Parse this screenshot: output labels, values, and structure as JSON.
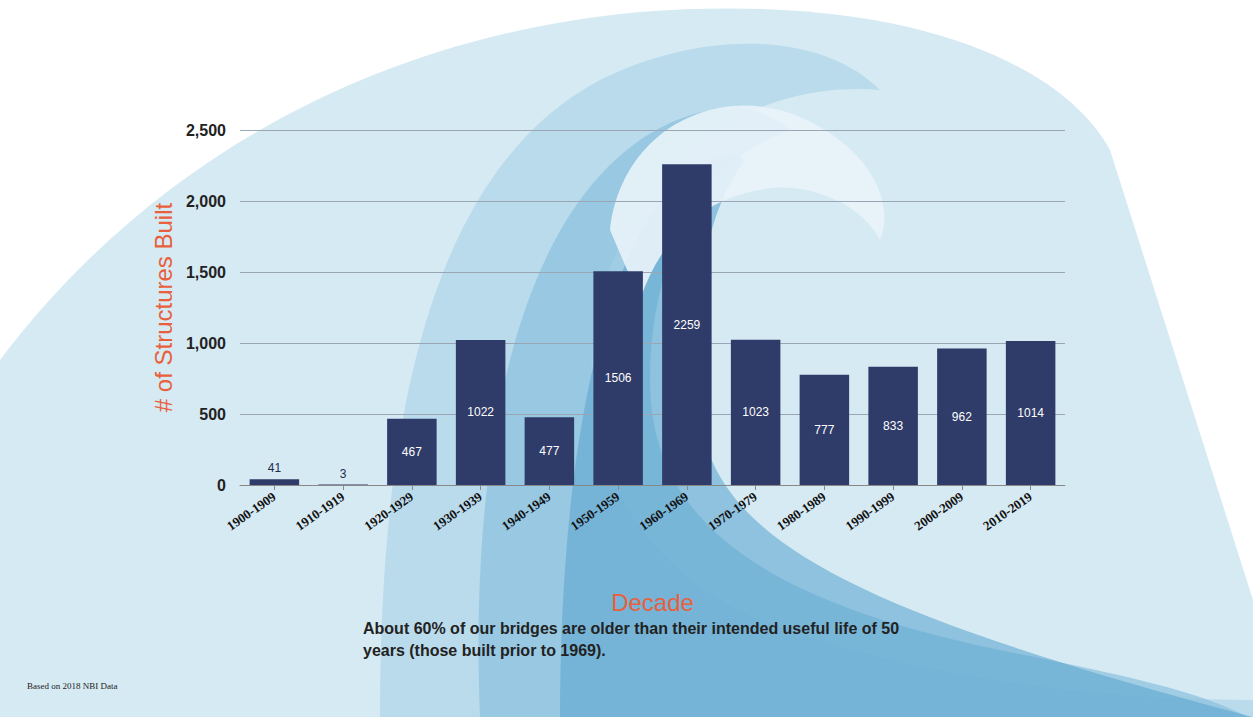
{
  "chart_data": {
    "type": "bar",
    "categories": [
      "1900-1909",
      "1910-1919",
      "1920-1929",
      "1930-1939",
      "1940-1949",
      "1950-1959",
      "1960-1969",
      "1970-1979",
      "1980-1989",
      "1990-1999",
      "2000-2009",
      "2010-2019"
    ],
    "values": [
      41,
      3,
      467,
      1022,
      477,
      1506,
      2259,
      1023,
      777,
      833,
      962,
      1014
    ],
    "color": "#2f3b68",
    "ylim": [
      0,
      2500
    ],
    "yticks": [
      0,
      500,
      1000,
      1500,
      2000,
      2500
    ],
    "grid": true,
    "data_labels": true,
    "x_label": "Decade",
    "y_label": "# of Structures Built",
    "annotations": [
      "About 60% of our bridges are older than their intended useful life of 50 years (those built prior to 1969).",
      "Based on 2018 NBI Data"
    ]
  }
}
